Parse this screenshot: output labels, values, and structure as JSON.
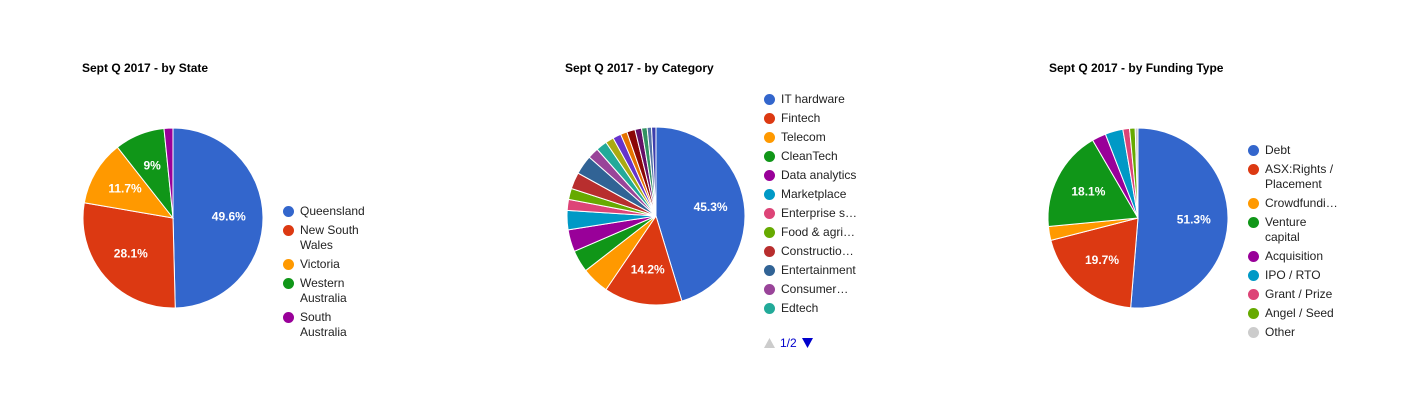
{
  "chart_data": [
    {
      "type": "pie",
      "title": "Sept Q 2017 - by State",
      "categories": [
        "Queensland",
        "New South Wales",
        "Victoria",
        "Western Australia",
        "South Australia"
      ],
      "values": [
        49.6,
        28.1,
        11.7,
        9,
        1.6
      ],
      "value_labels": [
        "49.6%",
        "28.1%",
        "11.7%",
        "9%",
        null
      ],
      "colors": [
        "#3366cc",
        "#dc3912",
        "#ff9900",
        "#109618",
        "#990099"
      ],
      "legend_position": "right"
    },
    {
      "type": "pie",
      "title": "Sept Q 2017 - by Category",
      "categories": [
        "IT hardware",
        "Fintech",
        "Telecom",
        "CleanTech",
        "Data analytics",
        "Marketplace",
        "Enterprise s…",
        "Food & agri…",
        "Constructio…",
        "Entertainment",
        "Consumer…",
        "Edtech",
        null,
        null,
        null,
        null,
        null,
        null,
        null,
        null
      ],
      "values": [
        45.3,
        14.2,
        5,
        4,
        4,
        3.5,
        2,
        2,
        3,
        3.5,
        2,
        2,
        1.5,
        1.5,
        1.2,
        1.5,
        1.2,
        1,
        0.8,
        0.8
      ],
      "value_labels": [
        "45.3%",
        "14.2%",
        null,
        null,
        null,
        null,
        null,
        null,
        null,
        null,
        null,
        null,
        null,
        null,
        null,
        null,
        null,
        null,
        null,
        null
      ],
      "colors": [
        "#3366cc",
        "#dc3912",
        "#ff9900",
        "#109618",
        "#990099",
        "#0099c6",
        "#dd4477",
        "#66aa00",
        "#b82e2e",
        "#316395",
        "#994499",
        "#22aa99",
        "#aaaa11",
        "#6633cc",
        "#e67300",
        "#8b0707",
        "#651067",
        "#329262",
        "#5574a6",
        "#3b3eac"
      ],
      "legend_position": "right",
      "legend_page": "1/2"
    },
    {
      "type": "pie",
      "title": "Sept Q 2017 - by Funding Type",
      "categories": [
        "Debt",
        "ASX:Rights / Placement",
        "Crowdfundi…",
        "Venture capital",
        "Acquisition",
        "IPO / RTO",
        "Grant / Prize",
        "Angel / Seed",
        "Other"
      ],
      "values": [
        51.3,
        19.7,
        2.5,
        18.1,
        2.5,
        3.2,
        1.2,
        1,
        0.5
      ],
      "value_labels": [
        "51.3%",
        "19.7%",
        null,
        "18.1%",
        null,
        null,
        null,
        null,
        null
      ],
      "colors": [
        "#3366cc",
        "#dc3912",
        "#ff9900",
        "#109618",
        "#990099",
        "#0099c6",
        "#dd4477",
        "#66aa00",
        "#cccccc"
      ],
      "legend_position": "right"
    }
  ]
}
